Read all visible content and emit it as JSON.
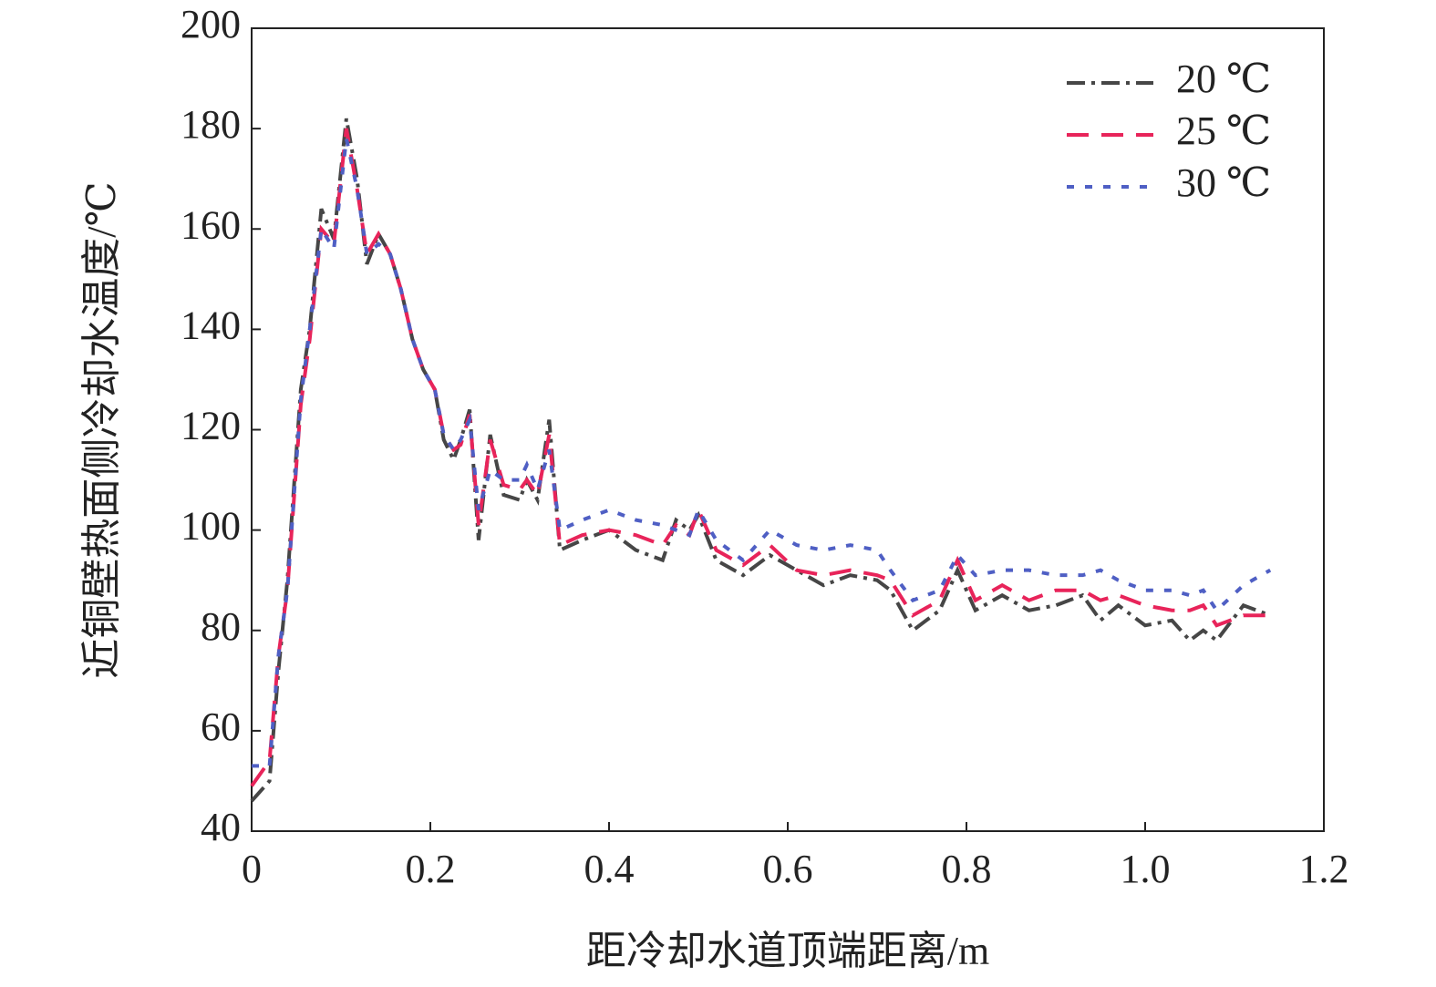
{
  "chart_data": {
    "type": "line",
    "xlabel": "距冷却水道顶端距离/m",
    "ylabel": "近铜壁热面侧冷却水温度/℃",
    "xlim": [
      0,
      1.2
    ],
    "xticks": [
      0,
      0.2,
      0.4,
      0.6,
      0.8,
      {
        "value": 1,
        "label": "1.0"
      },
      1.2
    ],
    "ylim": [
      40,
      200
    ],
    "yticks": [
      40,
      60,
      80,
      100,
      120,
      140,
      160,
      180,
      200
    ],
    "legend": "upper right",
    "x": [
      0,
      0.02,
      0.03,
      0.04,
      0.055,
      0.065,
      0.078,
      0.092,
      0.106,
      0.118,
      0.129,
      0.142,
      0.155,
      0.167,
      0.18,
      0.192,
      0.205,
      0.215,
      0.226,
      0.234,
      0.244,
      0.254,
      0.267,
      0.282,
      0.3,
      0.308,
      0.32,
      0.333,
      0.345,
      0.37,
      0.4,
      0.43,
      0.46,
      0.475,
      0.49,
      0.5,
      0.52,
      0.55,
      0.58,
      0.61,
      0.64,
      0.67,
      0.7,
      0.715,
      0.74,
      0.77,
      0.79,
      0.81,
      0.84,
      0.87,
      0.9,
      0.93,
      0.95,
      0.97,
      1.0,
      1.03,
      1.05,
      1.065,
      1.08,
      1.11,
      1.14
    ],
    "series": [
      {
        "name": "20 ℃",
        "color": "#464646",
        "dash": "20 7 4 7",
        "values": [
          46,
          50,
          72,
          90,
          128,
          140,
          164,
          158,
          182,
          170,
          153,
          159,
          155,
          148,
          138,
          132,
          128,
          118,
          114,
          118,
          124,
          98,
          119,
          107,
          106,
          110,
          106,
          122,
          96,
          98,
          100,
          96,
          94,
          102,
          100,
          103,
          94,
          91,
          95,
          92,
          89,
          91,
          90,
          88,
          80,
          84,
          92,
          84,
          87,
          84,
          85,
          87,
          82,
          85,
          81,
          82,
          78,
          80,
          78,
          85,
          83
        ]
      },
      {
        "name": "25 ℃",
        "color": "#e8245a",
        "dash": "24 14",
        "values": [
          49,
          54,
          75,
          88,
          125,
          138,
          160,
          157,
          180,
          168,
          155,
          159,
          155,
          148,
          138,
          132,
          128,
          119,
          116,
          117,
          123,
          101,
          118,
          109,
          108,
          110,
          107,
          119,
          97,
          99,
          100,
          99,
          97,
          101,
          99,
          104,
          96,
          93,
          97,
          92,
          91,
          92,
          91,
          90,
          83,
          86,
          94,
          86,
          89,
          86,
          88,
          88,
          86,
          87,
          85,
          84,
          84,
          85,
          81,
          83,
          83
        ]
      },
      {
        "name": "30 ℃",
        "color": "#4f5fc4",
        "dash": "8 12",
        "values": [
          53,
          53,
          75,
          88,
          126,
          140,
          160,
          156,
          178,
          168,
          155,
          157,
          155,
          148,
          138,
          132,
          128,
          119,
          116,
          118,
          122,
          104,
          112,
          110,
          110,
          113,
          108,
          116,
          100,
          102,
          104,
          102,
          101,
          100,
          99,
          104,
          98,
          94,
          100,
          97,
          96,
          97,
          96,
          92,
          86,
          88,
          95,
          91,
          92,
          92,
          91,
          91,
          92,
          90,
          88,
          88,
          87,
          88,
          84,
          89,
          92
        ]
      }
    ]
  }
}
